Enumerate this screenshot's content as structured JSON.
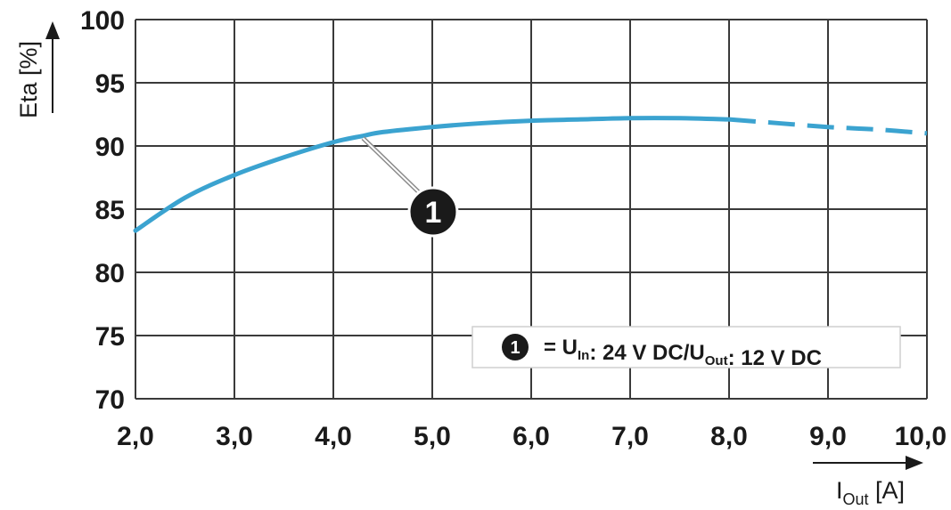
{
  "chart_data": {
    "type": "line",
    "xlabel": {
      "main": "I",
      "sub": "Out",
      "unit": " [A]"
    },
    "ylabel": "Eta [%]",
    "xlim": [
      2.0,
      10.0
    ],
    "ylim": [
      70,
      100
    ],
    "x_ticks": [
      "2,0",
      "3,0",
      "4,0",
      "5,0",
      "6,0",
      "7,0",
      "8,0",
      "9,0",
      "10,0"
    ],
    "y_ticks": [
      "70",
      "75",
      "80",
      "85",
      "90",
      "95",
      "100"
    ],
    "grid": true,
    "colors": {
      "curve": "#3ba3d0",
      "grid": "#3a3a3a",
      "marker": "#1a1a1a"
    },
    "series": [
      {
        "marker": "1",
        "solid": {
          "x": [
            2.0,
            2.5,
            3.0,
            3.5,
            4.0,
            4.3,
            4.5,
            5.0,
            5.5,
            6.0,
            6.5,
            7.0,
            7.5,
            8.0
          ],
          "y": [
            83.3,
            85.9,
            87.7,
            89.1,
            90.3,
            90.8,
            91.1,
            91.5,
            91.8,
            92.0,
            92.1,
            92.2,
            92.2,
            92.1
          ]
        },
        "dashed": {
          "x": [
            8.0,
            8.5,
            9.0,
            9.5,
            10.0
          ],
          "y": [
            92.1,
            91.8,
            91.5,
            91.3,
            91.0
          ]
        }
      }
    ],
    "annotation": {
      "marker": "1",
      "x": 4.3,
      "y": 90.9
    },
    "legend": {
      "placement": "bottom-right",
      "marker": "1",
      "parts": [
        {
          "text": "= U",
          "sub": "In"
        },
        {
          "text": ": 24 V DC/U",
          "sub": "Out"
        },
        {
          "text": ": 12 V DC",
          "sub": ""
        }
      ]
    }
  }
}
